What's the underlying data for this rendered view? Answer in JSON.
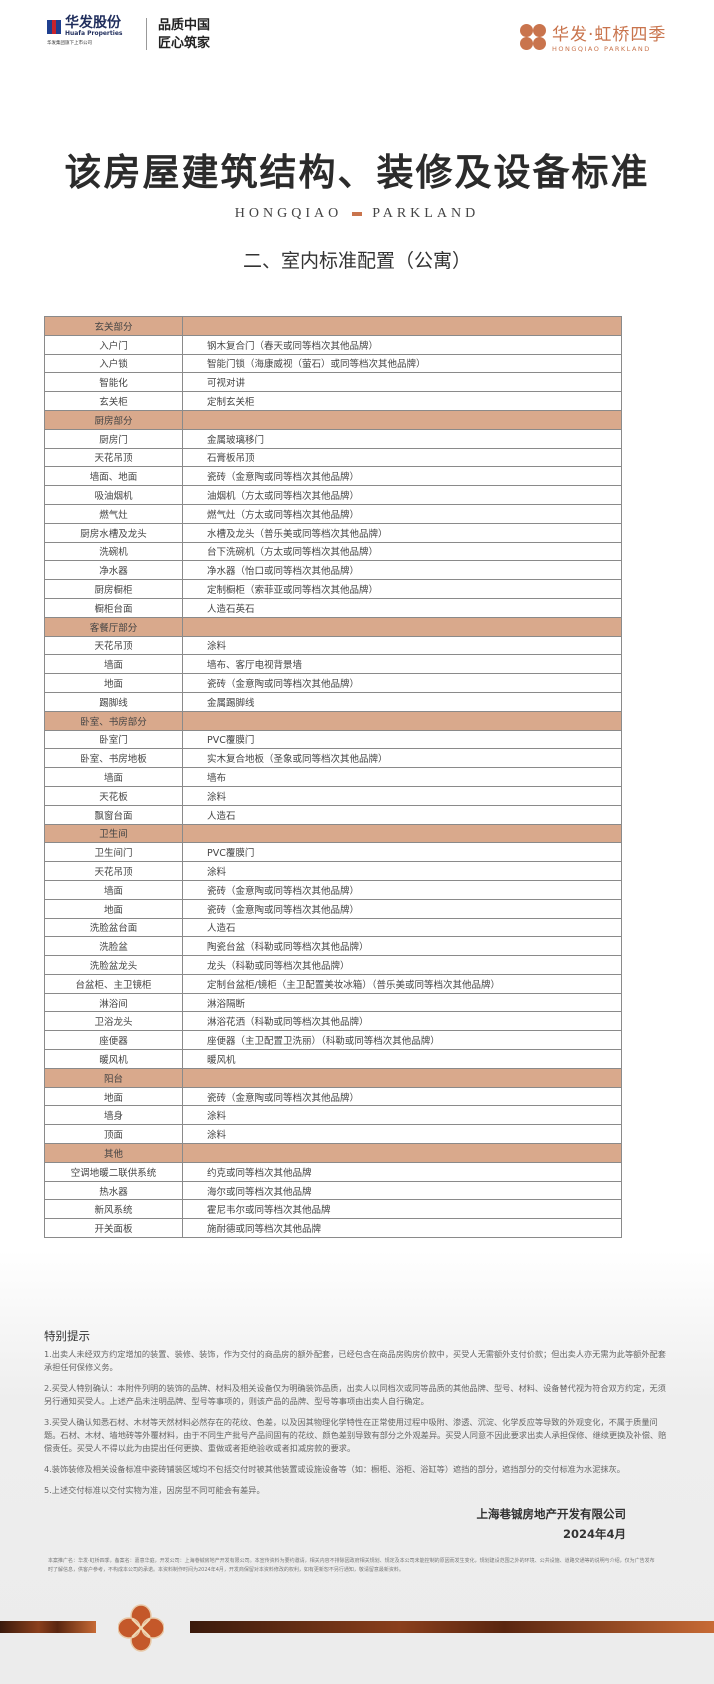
{
  "header": {
    "logo_left_cn": "华发股份",
    "logo_left_en": "Huafa Properties",
    "logo_left_sub": "华发集团旗下上市公司",
    "slogan_line1": "品质中国",
    "slogan_line2": "匠心筑家",
    "logo_right_cn": "华发·虹桥四季",
    "logo_right_en": "HONGQIAO PARKLAND"
  },
  "title": "该房屋建筑结构、装修及设备标准",
  "brand_left": "HONGQIAO",
  "brand_right": "PARKLAND",
  "subtitle": "二、室内标准配置（公寓）",
  "colors": {
    "section_bg": "#d9a98c",
    "accent": "#c9744d"
  },
  "sections": [
    {
      "name": "玄关部分",
      "rows": [
        [
          "入户门",
          "钢木复合门（春天或同等档次其他品牌）"
        ],
        [
          "入户锁",
          "智能门锁（海康威视（萤石）或同等档次其他品牌）"
        ],
        [
          "智能化",
          "可视对讲"
        ],
        [
          "玄关柜",
          "定制玄关柜"
        ]
      ]
    },
    {
      "name": "厨房部分",
      "rows": [
        [
          "厨房门",
          "金属玻璃移门"
        ],
        [
          "天花吊顶",
          "石膏板吊顶"
        ],
        [
          "墙面、地面",
          "瓷砖（金意陶或同等档次其他品牌）"
        ],
        [
          "吸油烟机",
          "油烟机（方太或同等档次其他品牌）"
        ],
        [
          "燃气灶",
          "燃气灶（方太或同等档次其他品牌）"
        ],
        [
          "厨房水槽及龙头",
          "水槽及龙头（普乐美或同等档次其他品牌）"
        ],
        [
          "洗碗机",
          "台下洗碗机（方太或同等档次其他品牌）"
        ],
        [
          "净水器",
          "净水器（怡口或同等档次其他品牌）"
        ],
        [
          "厨房橱柜",
          "定制橱柜（索菲亚或同等档次其他品牌）"
        ],
        [
          "橱柜台面",
          "人造石英石"
        ]
      ]
    },
    {
      "name": "客餐厅部分",
      "rows": [
        [
          "天花吊顶",
          "涂料"
        ],
        [
          "墙面",
          "墙布、客厅电视背景墙"
        ],
        [
          "地面",
          "瓷砖（金意陶或同等档次其他品牌）"
        ],
        [
          "踢脚线",
          "金属踢脚线"
        ]
      ]
    },
    {
      "name": "卧室、书房部分",
      "rows": [
        [
          "卧室门",
          "PVC覆膜门"
        ],
        [
          "卧室、书房地板",
          "实木复合地板（圣象或同等档次其他品牌）"
        ],
        [
          "墙面",
          "墙布"
        ],
        [
          "天花板",
          "涂料"
        ],
        [
          "飘窗台面",
          "人造石"
        ]
      ]
    },
    {
      "name": "卫生间",
      "rows": [
        [
          "卫生间门",
          "PVC覆膜门"
        ],
        [
          "天花吊顶",
          "涂料"
        ],
        [
          "墙面",
          "瓷砖（金意陶或同等档次其他品牌）"
        ],
        [
          "地面",
          "瓷砖（金意陶或同等档次其他品牌）"
        ],
        [
          "洗脸盆台面",
          "人造石"
        ],
        [
          "洗脸盆",
          "陶瓷台盆（科勒或同等档次其他品牌）"
        ],
        [
          "洗脸盆龙头",
          "龙头（科勒或同等档次其他品牌）"
        ],
        [
          "台盆柜、主卫镜柜",
          "定制台盆柜/镜柜（主卫配置美妆冰箱）（普乐美或同等档次其他品牌）"
        ],
        [
          "淋浴间",
          "淋浴隔断"
        ],
        [
          "卫浴龙头",
          "淋浴花洒（科勒或同等档次其他品牌）"
        ],
        [
          "座便器",
          "座便器（主卫配置卫洗丽）（科勒或同等档次其他品牌）"
        ],
        [
          "暖风机",
          "暖风机"
        ]
      ]
    },
    {
      "name": "阳台",
      "rows": [
        [
          "地面",
          "瓷砖（金意陶或同等档次其他品牌）"
        ],
        [
          "墙身",
          "涂料"
        ],
        [
          "顶面",
          "涂料"
        ]
      ]
    },
    {
      "name": "其他",
      "rows": [
        [
          "空调地暖二联供系统",
          "约克或同等档次其他品牌"
        ],
        [
          "热水器",
          "海尔或同等档次其他品牌"
        ],
        [
          "新风系统",
          "霍尼韦尔或同等档次其他品牌"
        ],
        [
          "开关面板",
          "施耐德或同等档次其他品牌"
        ]
      ]
    }
  ],
  "notes": {
    "title": "特别提示",
    "items": [
      "1.出卖人未经双方约定增加的装置、装修、装饰，作为交付的商品房的额外配套，已经包含在商品房购房价款中，买受人无需额外支付价款；但出卖人亦无需为此等额外配套承担任何保修义务。",
      "2.买受人特别确认：本附件列明的装饰的品牌、材料及相关设备仅为明确装饰品质，出卖人以同档次或同等品质的其他品牌、型号、材料、设备替代视为符合双方约定，无须另行通知买受人。上述产品未注明品牌、型号等事项的，则该产品的品牌、型号等事项由出卖人自行确定。",
      "3.买受人确认知悉石材、木材等天然材料必然存在的花纹、色差，以及因其物理化学特性在正常使用过程中吸附、渗透、沉淀、化学反应等导致的外观变化，不属于质量问题。石材、木材、墙地砖等外覆材料，由于不同生产批号产品间固有的花纹、颜色差别导致有部分之外观差异。买受人同意不因此要求出卖人承担保修、继续更换及补偿、赔偿责任。买受人不得以此为由提出任何更换、重做或者拒绝验收或者扣减房款的要求。",
      "4.装饰装修及相关设备标准中瓷砖铺装区域均不包括交付时被其他装置或设施设备等（如：橱柜、浴柜、浴缸等）遮挡的部分，遮挡部分的交付标准为水泥抹灰。",
      "5.上述交付标准以交付实物为准，因房型不同可能会有差异。"
    ]
  },
  "company": "上海巷铖房地产开发有限公司",
  "date": "2024年4月",
  "fine_print": "本案推广名：华发·虹桥四季，备案名：嘉意华庭，开发公司：上海巷铖房地产开发有限公司。本宣传资料为要约邀请，相关内容不排除因政府相关规划、规定及本公司未能控制的原因而发生变化，规划建设范围之外的环境、公共设施、道路交通等的说明与介绍，仅为广告发布时了解信息，供客户参考，不构成本公司的承诺。本资料制作时间为2024年4月，开发商保留对本资料修改的权利，如有更新恕不另行通知，敬请留意最新资料。"
}
